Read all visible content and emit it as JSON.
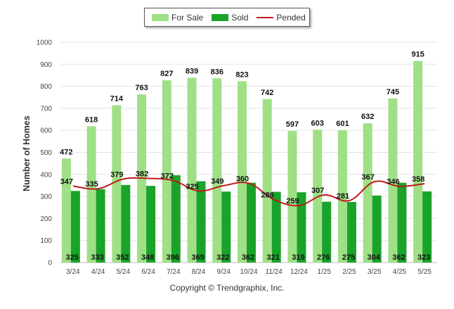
{
  "chart_data": {
    "type": "bar",
    "categories": [
      "3/24",
      "4/24",
      "5/24",
      "6/24",
      "7/24",
      "8/24",
      "9/24",
      "10/24",
      "11/24",
      "12/24",
      "1/25",
      "2/25",
      "3/25",
      "4/25",
      "5/25"
    ],
    "series": [
      {
        "name": "For Sale",
        "type": "bar",
        "color": "#9fe086",
        "values": [
          472,
          618,
          714,
          763,
          827,
          839,
          836,
          823,
          742,
          597,
          603,
          601,
          632,
          745,
          915
        ]
      },
      {
        "name": "Sold",
        "type": "bar",
        "color": "#1aa32a",
        "values": [
          325,
          333,
          352,
          348,
          396,
          369,
          322,
          362,
          321,
          319,
          276,
          275,
          304,
          362,
          323
        ]
      },
      {
        "name": "Pended",
        "type": "line",
        "color": "#c0181c",
        "values": [
          347,
          335,
          379,
          382,
          372,
          325,
          349,
          360,
          286,
          259,
          307,
          281,
          367,
          346,
          358
        ]
      }
    ],
    "xlabel": "",
    "ylabel": "Number of Homes",
    "ylim": [
      0,
      1000
    ],
    "yticks": [
      0,
      100,
      200,
      300,
      400,
      500,
      600,
      700,
      800,
      900,
      1000
    ],
    "grid": true,
    "legend_position": "top-center"
  },
  "footer": {
    "copyright": "Copyright © Trendgraphix, Inc."
  }
}
